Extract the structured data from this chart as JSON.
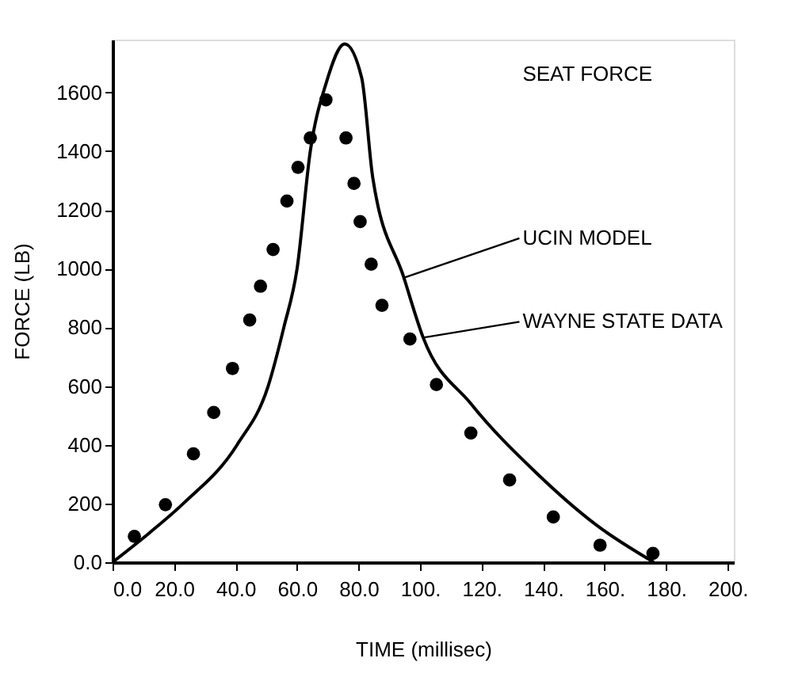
{
  "chart_data": {
    "type": "line",
    "xlabel": "TIME (millisec)",
    "ylabel": "FORCE (LB)",
    "xlim": [
      0,
      202
    ],
    "ylim": [
      0,
      1780
    ],
    "xticks": [
      {
        "value": 0,
        "label": "0.0"
      },
      {
        "value": 20,
        "label": "20.0"
      },
      {
        "value": 40,
        "label": "40.0"
      },
      {
        "value": 60,
        "label": "60.0"
      },
      {
        "value": 80,
        "label": "80.0"
      },
      {
        "value": 100,
        "label": "100."
      },
      {
        "value": 120,
        "label": "120."
      },
      {
        "value": 140,
        "label": "140."
      },
      {
        "value": 160,
        "label": "160."
      },
      {
        "value": 180,
        "label": "180."
      },
      {
        "value": 200,
        "label": "200."
      }
    ],
    "yticks": [
      {
        "value": 0,
        "label": "0.0"
      },
      200,
      400,
      600,
      800,
      1000,
      1200,
      1400,
      1600
    ],
    "series": [
      {
        "color": "#000000",
        "line_style": "solid",
        "x": [
          0,
          12,
          23,
          40.5,
          50.6,
          55.7,
          60,
          64.3,
          69.4,
          75.5,
          81,
          84.6,
          94.7,
          101,
          116.5,
          138,
          157,
          176
        ],
        "values": [
          0,
          100,
          200,
          400,
          600,
          800,
          1000,
          1400,
          1630,
          1765,
          1650,
          1310,
          970,
          765,
          540,
          302,
          129,
          0
        ]
      },
      {
        "type": "scatter",
        "color": "#000000",
        "marker": "circle",
        "x": [
          7.1,
          17.2,
          26.3,
          32.9,
          39.0,
          44.6,
          48.1,
          52.2,
          56.7,
          60.3,
          64.3,
          69.4,
          75.9,
          78.5,
          80.5,
          84.1,
          87.6,
          96.7,
          105.3,
          116.5,
          129.1,
          143.3,
          158.5,
          175.7
        ],
        "values": [
          88,
          196,
          369,
          510,
          660,
          825,
          940,
          1065,
          1230,
          1345,
          1445,
          1575,
          1445,
          1290,
          1160,
          1015,
          875,
          760,
          605,
          440,
          280,
          154,
          58,
          30
        ]
      }
    ],
    "annotations": [
      "SEAT FORCE",
      {
        "text": "UCIN MODEL",
        "x": 95,
        "y": 970
      },
      {
        "text": "WAYNE STATE DATA",
        "x": 101,
        "y": 765
      }
    ]
  }
}
